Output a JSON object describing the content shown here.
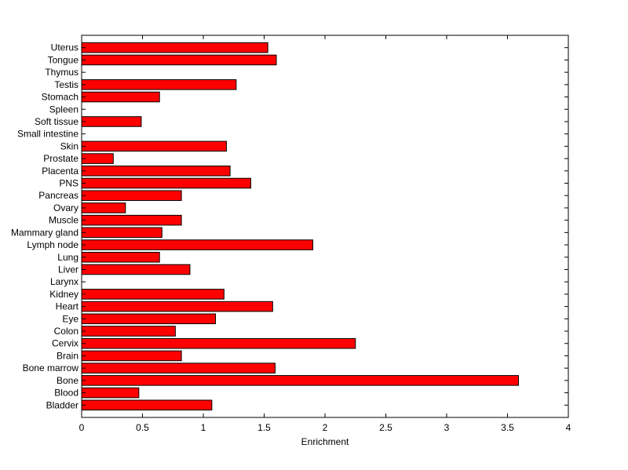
{
  "chart_data": {
    "type": "bar",
    "orientation": "horizontal",
    "xlabel": "Enrichment",
    "ylabel": "",
    "title": "",
    "xlim": [
      0,
      4
    ],
    "xticks": [
      0,
      0.5,
      1,
      1.5,
      2,
      2.5,
      3,
      3.5,
      4
    ],
    "xtick_labels": [
      "0",
      "0.5",
      "1",
      "1.5",
      "2",
      "2.5",
      "3",
      "3.5",
      "4"
    ],
    "grid": false,
    "bar_color": "#ff0000",
    "bar_edge_color": "#000000",
    "categories": [
      "Bladder",
      "Blood",
      "Bone",
      "Bone marrow",
      "Brain",
      "Cervix",
      "Colon",
      "Eye",
      "Heart",
      "Kidney",
      "Larynx",
      "Liver",
      "Lung",
      "Lymph node",
      "Mammary gland",
      "Muscle",
      "Ovary",
      "Pancreas",
      "PNS",
      "Placenta",
      "Prostate",
      "Skin",
      "Small intestine",
      "Soft tissue",
      "Spleen",
      "Stomach",
      "Testis",
      "Thymus",
      "Tongue",
      "Uterus"
    ],
    "values": [
      1.07,
      0.47,
      3.59,
      1.59,
      0.82,
      2.25,
      0.77,
      1.1,
      1.57,
      1.17,
      0,
      0.89,
      0.64,
      1.9,
      0.66,
      0.82,
      0.36,
      0.82,
      1.39,
      1.22,
      0.26,
      1.19,
      0,
      0.49,
      0,
      0.64,
      1.27,
      0,
      1.6,
      1.53
    ]
  }
}
